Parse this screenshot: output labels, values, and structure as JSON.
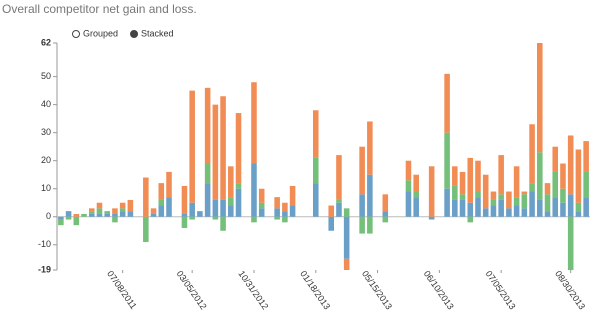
{
  "chart_data": {
    "type": "bar",
    "stacked": true,
    "title": "Overall competitor net gain and loss.",
    "controls": {
      "options": [
        "Grouped",
        "Stacked"
      ],
      "selected": 1
    },
    "categories": [
      null,
      null,
      null,
      null,
      null,
      null,
      null,
      null,
      "07/08/2011",
      null,
      null,
      null,
      null,
      null,
      null,
      null,
      null,
      "03/05/2012",
      null,
      null,
      null,
      null,
      null,
      null,
      null,
      "10/31/2012",
      null,
      null,
      null,
      null,
      null,
      null,
      null,
      "01/18/2013",
      null,
      null,
      null,
      null,
      null,
      null,
      null,
      "05/15/2013",
      null,
      null,
      null,
      null,
      null,
      null,
      null,
      "06/10/2013",
      null,
      null,
      null,
      null,
      null,
      null,
      null,
      "07/05/2013",
      null,
      null,
      null,
      null,
      null,
      null,
      null,
      null,
      "08/30/2013",
      null,
      null
    ],
    "series": [
      {
        "color": "#6a9fc8",
        "values": [
          -1,
          2,
          0,
          0,
          1,
          1,
          1,
          1,
          2,
          2,
          0,
          0,
          1,
          4,
          7,
          0,
          1,
          5,
          2,
          12,
          6,
          6,
          4,
          10,
          0,
          19,
          3,
          0,
          3,
          2,
          4,
          0,
          0,
          12,
          0,
          -5,
          5,
          -15,
          0,
          8,
          15,
          0,
          2,
          0,
          0,
          9,
          7,
          0,
          -1,
          0,
          10,
          6,
          6,
          5,
          7,
          3,
          4,
          6,
          3,
          4,
          3,
          9,
          6,
          2,
          7,
          5,
          8,
          2,
          7
        ]
      },
      {
        "color": "#74bf7a",
        "values": [
          -2,
          -1,
          -3,
          1,
          1,
          2,
          1,
          -2,
          1,
          0,
          0,
          -9,
          0,
          2,
          0,
          0,
          -4,
          -1,
          0,
          7,
          -1,
          -5,
          3,
          2,
          0,
          -2,
          2,
          0,
          -1,
          -2,
          0,
          0,
          0,
          9,
          0,
          0,
          1,
          3,
          0,
          -6,
          -6,
          0,
          -2,
          0,
          0,
          4,
          2,
          0,
          0,
          0,
          20,
          5,
          2,
          -2,
          2,
          0,
          2,
          2,
          0,
          3,
          5,
          3,
          17,
          6,
          9,
          5,
          -19,
          3,
          9
        ]
      },
      {
        "color": "#f28c55",
        "values": [
          0,
          0,
          1,
          0,
          1,
          2,
          0,
          2,
          2,
          4,
          0,
          14,
          2,
          6,
          9,
          0,
          10,
          40,
          0,
          27,
          34,
          37,
          11,
          25,
          0,
          29,
          5,
          0,
          4,
          3,
          7,
          0,
          0,
          17,
          0,
          4,
          16,
          -4,
          0,
          17,
          19,
          0,
          6,
          0,
          0,
          7,
          6,
          0,
          18,
          0,
          21,
          7,
          8,
          16,
          11,
          12,
          3,
          14,
          6,
          11,
          1,
          21,
          39,
          4,
          9,
          9,
          21,
          19,
          11
        ]
      }
    ],
    "ylim": [
      -19,
      62
    ],
    "yticks": [
      -19,
      -10,
      0,
      10,
      20,
      30,
      40,
      50,
      62
    ]
  }
}
